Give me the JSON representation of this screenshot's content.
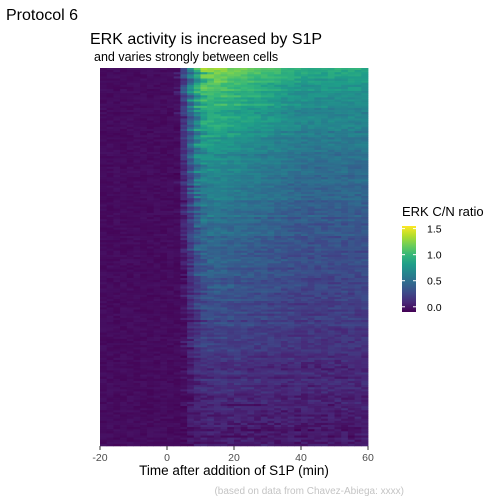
{
  "protocol_label": "Protocol 6",
  "caption": "(based on data from Chavez-Abiega: xxxx)",
  "colors": {
    "viridis": [
      "#440154",
      "#482878",
      "#3e4989",
      "#31688e",
      "#26828e",
      "#1f9e89",
      "#35b779",
      "#6ece58",
      "#b5de2b",
      "#fde725"
    ],
    "baseline": "#43075a",
    "background": "#ffffff"
  },
  "chart_data": {
    "type": "heatmap",
    "title": "ERK activity is increased by S1P",
    "subtitle": "and varies strongly between cells",
    "xlabel": "Time after addition of S1P (min)",
    "ylabel": "",
    "xlim": [
      -20,
      60
    ],
    "x_ticks": [
      -20,
      0,
      20,
      40,
      60
    ],
    "x_tick_labels": [
      "-20",
      "0",
      "20",
      "40",
      "60"
    ],
    "legend": {
      "title": "ERK C/N ratio",
      "placement": "right",
      "range": [
        -0.1,
        1.55
      ],
      "ticks": [
        0.0,
        0.5,
        1.0,
        1.5
      ],
      "tick_labels": [
        "0.0",
        "0.5",
        "1.0",
        "1.5"
      ]
    },
    "rows_sorted": "descending by response",
    "baseline_value": -0.05,
    "response_onset_min": [
      2,
      4
    ],
    "response_peak_min": [
      8,
      14
    ],
    "response_range": [
      0.05,
      1.45
    ],
    "sustained_fraction": 0.7
  }
}
